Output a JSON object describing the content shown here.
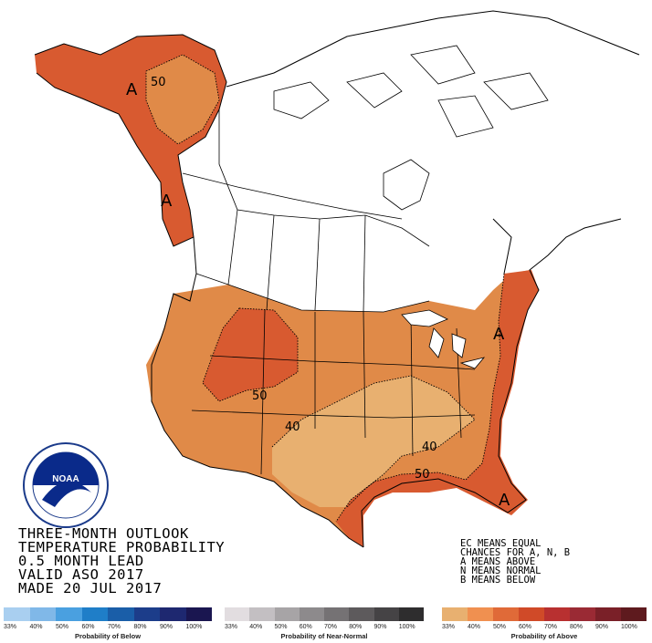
{
  "map": {
    "title_lines": [
      "THREE-MONTH OUTLOOK",
      "TEMPERATURE PROBABILITY",
      "0.5 MONTH LEAD",
      "VALID ASO 2017",
      "MADE 20 JUL 2017"
    ],
    "ec_lines": [
      "EC MEANS EQUAL",
      "CHANCES FOR A, N, B",
      "A MEANS ABOVE",
      "N MEANS NORMAL",
      "B MEANS BELOW"
    ],
    "contour_labels": [
      "50",
      "50",
      "40",
      "40",
      "50"
    ],
    "area_labels": [
      "A",
      "A",
      "A",
      "A"
    ],
    "logo_text": "NOAA",
    "colors": {
      "above_33": "#e8b070",
      "above_40": "#e08a48",
      "above_50": "#d85a30",
      "ocean": "#ffffff",
      "boundary": "#000000"
    }
  },
  "legend": {
    "below": {
      "caption": "Probability of Below",
      "ticks": [
        "33%",
        "40%",
        "50%",
        "60%",
        "70%",
        "80%",
        "90%",
        "100%"
      ],
      "colors": [
        "#a9cff0",
        "#80b8e8",
        "#4aa0e0",
        "#1f7ec8",
        "#1a5ea8",
        "#1c3d8a",
        "#1e2870",
        "#1a1650"
      ]
    },
    "normal": {
      "caption": "Probability of Near-Normal",
      "ticks": [
        "33%",
        "40%",
        "50%",
        "60%",
        "70%",
        "80%",
        "90%",
        "100%"
      ],
      "colors": [
        "#e2dde0",
        "#c3bfc2",
        "#a7a4a6",
        "#8d8a8c",
        "#757274",
        "#5d5a5c",
        "#454345",
        "#2e2d2e"
      ]
    },
    "above": {
      "caption": "Probability of Above",
      "ticks": [
        "33%",
        "40%",
        "50%",
        "60%",
        "70%",
        "80%",
        "90%",
        "100%"
      ],
      "colors": [
        "#e8b070",
        "#f09050",
        "#e06a38",
        "#d04a28",
        "#b83030",
        "#9a2a34",
        "#7a2028",
        "#5e1a1e"
      ]
    }
  }
}
